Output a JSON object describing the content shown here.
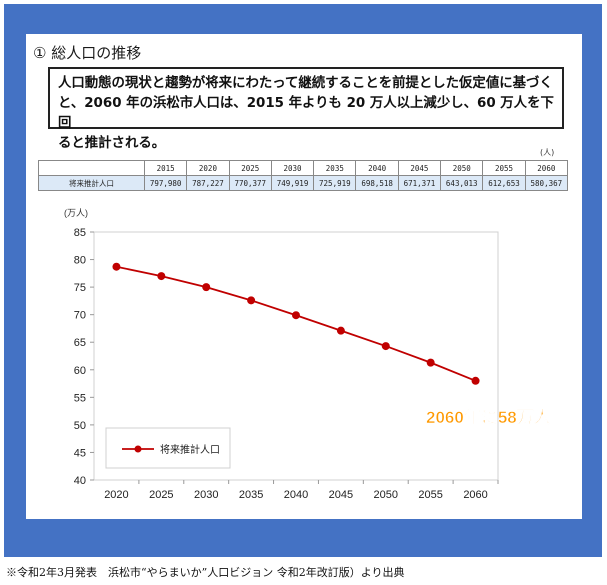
{
  "heading": "① 総人口の推移",
  "note": {
    "line1": "人口動態の現状と趨勢が将来にわたって継続することを前提とした仮定値に基づく",
    "line2": "と、2060 年の浜松市人口は、2015 年よりも 20 万人以上減少し、60 万人を下回",
    "line3": "ると推計される。"
  },
  "table": {
    "unit": "(人)",
    "row_label": "将来推計人口",
    "years": [
      "2015",
      "2020",
      "2025",
      "2030",
      "2035",
      "2040",
      "2045",
      "2050",
      "2055",
      "2060"
    ],
    "values": [
      "797,980",
      "787,227",
      "770,377",
      "749,919",
      "725,919",
      "698,518",
      "671,371",
      "643,013",
      "612,653",
      "580,367"
    ]
  },
  "chart_data": {
    "type": "line",
    "ylabel_unit": "(万人)",
    "ylim": [
      40,
      85
    ],
    "yticks": [
      40,
      45,
      50,
      55,
      60,
      65,
      70,
      75,
      80,
      85
    ],
    "categories": [
      "2020",
      "2025",
      "2030",
      "2035",
      "2040",
      "2045",
      "2050",
      "2055",
      "2060"
    ],
    "series": [
      {
        "name": "将来推計人口",
        "color": "#c00000",
        "values": [
          78.7,
          77.0,
          75.0,
          72.6,
          69.9,
          67.1,
          64.3,
          61.3,
          58.0
        ]
      }
    ],
    "annotation": "2060年に58万人",
    "annotation_color": "#ff9900",
    "legend_position": "bottom-left",
    "grid": false
  },
  "footer": "※令和2年3月発表　浜松市“やらまいか”人口ビジョン 令和2年改訂版）より出典"
}
